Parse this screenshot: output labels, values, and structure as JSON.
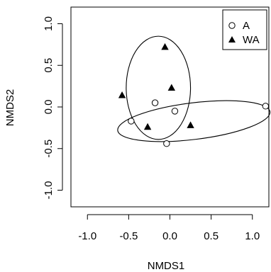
{
  "chart_data": {
    "type": "scatter",
    "title": "",
    "xlabel": "NMDS1",
    "ylabel": "NMDS2",
    "xlim": [
      -1.2,
      1.2
    ],
    "ylim": [
      -1.2,
      1.2
    ],
    "xticks": [
      -1.0,
      -0.5,
      0.0,
      0.5,
      1.0
    ],
    "yticks": [
      -1.0,
      -0.5,
      0.0,
      0.5,
      1.0
    ],
    "xtick_labels": [
      "-1.0",
      "-0.5",
      "0.0",
      "0.5",
      "1.0"
    ],
    "ytick_labels": [
      "-1.0",
      "-0.5",
      "0.0",
      "0.5",
      "1.0"
    ],
    "grid": false,
    "legend_position": "top-right",
    "series": [
      {
        "name": "A",
        "marker": "open-circle",
        "color": "#000000",
        "points": [
          {
            "x": -0.47,
            "y": -0.17
          },
          {
            "x": -0.18,
            "y": 0.05
          },
          {
            "x": 0.06,
            "y": -0.05
          },
          {
            "x": -0.04,
            "y": -0.44
          },
          {
            "x": 1.16,
            "y": 0.01
          }
        ],
        "ellipse": {
          "cx": 0.29,
          "cy": -0.17,
          "rx": 0.93,
          "ry": 0.22,
          "angle_deg": 7
        }
      },
      {
        "name": "WA",
        "marker": "filled-triangle",
        "color": "#000000",
        "points": [
          {
            "x": -0.06,
            "y": 0.72
          },
          {
            "x": -0.58,
            "y": 0.14
          },
          {
            "x": 0.02,
            "y": 0.23
          },
          {
            "x": -0.27,
            "y": -0.24
          },
          {
            "x": 0.25,
            "y": -0.22
          }
        ],
        "ellipse": {
          "cx": -0.14,
          "cy": 0.23,
          "rx": 0.39,
          "ry": 0.62,
          "angle_deg": 0
        }
      }
    ]
  }
}
